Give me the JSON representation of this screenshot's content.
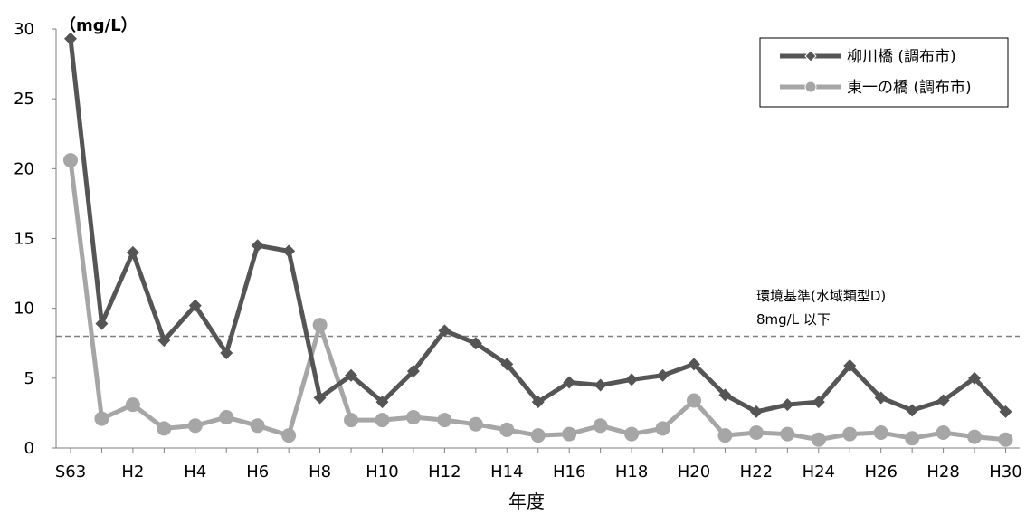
{
  "chart_data": {
    "type": "line",
    "unit_label": "（mg/L）",
    "xlabel": "年度",
    "ylabel": "",
    "ylim": [
      0,
      30
    ],
    "yticks": [
      0,
      5,
      10,
      15,
      20,
      25,
      30
    ],
    "categories": [
      "S63",
      "H1",
      "H2",
      "H3",
      "H4",
      "H5",
      "H6",
      "H7",
      "H8",
      "H9",
      "H10",
      "H11",
      "H12",
      "H13",
      "H14",
      "H15",
      "H16",
      "H17",
      "H18",
      "H19",
      "H20",
      "H21",
      "H22",
      "H23",
      "H24",
      "H25",
      "H26",
      "H27",
      "H28",
      "H29",
      "H30"
    ],
    "x_tick_labels": [
      "S63",
      "H2",
      "H4",
      "H6",
      "H8",
      "H10",
      "H12",
      "H14",
      "H16",
      "H18",
      "H20",
      "H22",
      "H24",
      "H26",
      "H28",
      "H30"
    ],
    "grid": false,
    "legend_position": "top-right",
    "series": [
      {
        "name": "柳川橋 (調布市)",
        "color": "#555555",
        "marker": "diamond",
        "values": [
          29.3,
          8.9,
          14.0,
          7.7,
          10.2,
          6.8,
          14.5,
          14.1,
          3.6,
          5.2,
          3.3,
          5.5,
          8.4,
          7.5,
          6.0,
          3.3,
          4.7,
          4.5,
          4.9,
          5.2,
          6.0,
          3.8,
          2.6,
          3.1,
          3.3,
          5.9,
          3.6,
          2.7,
          3.4,
          5.0,
          2.6
        ]
      },
      {
        "name": "東一の橋 (調布市)",
        "color": "#a6a6a6",
        "marker": "circle",
        "values": [
          20.6,
          2.1,
          3.1,
          1.4,
          1.6,
          2.2,
          1.6,
          0.9,
          8.8,
          2.0,
          2.0,
          2.2,
          2.0,
          1.7,
          1.3,
          0.9,
          1.0,
          1.6,
          1.0,
          1.4,
          3.4,
          0.9,
          1.1,
          1.0,
          0.6,
          1.0,
          1.1,
          0.7,
          1.1,
          0.8,
          0.6
        ]
      }
    ],
    "reference_line": {
      "value": 8,
      "label_line1": "環境基準(水域類型D)",
      "label_line2": "8mg/L 以下",
      "color": "#808080",
      "style": "dashed"
    }
  }
}
